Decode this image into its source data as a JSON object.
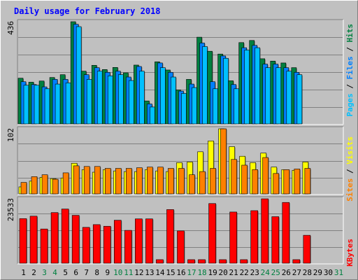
{
  "colors": {
    "background": "#c0c0c0",
    "panel": "#c0c0c0",
    "title": "#0000ff",
    "hits": "#008040",
    "files": "#0080ff",
    "files_light": "#00c0ff",
    "pages": "#00c0ff",
    "visits": "#ffff00",
    "sites": "#ff8000",
    "kbytes": "#ff0000",
    "weekend_label": "#008040",
    "weekday_label": "#000000"
  },
  "chart_data": {
    "type": "bar",
    "title": "Daily usage for February 2018",
    "days": [
      "1",
      "2",
      "3",
      "4",
      "5",
      "6",
      "7",
      "8",
      "9",
      "10",
      "11",
      "12",
      "13",
      "14",
      "15",
      "16",
      "17",
      "18",
      "19",
      "20",
      "21",
      "22",
      "23",
      "24",
      "25",
      "26",
      "27",
      "28",
      "29",
      "30",
      "31"
    ],
    "weekend_days": [
      "3",
      "4",
      "10",
      "11",
      "17",
      "18",
      "24",
      "25",
      "31"
    ],
    "panels": [
      {
        "name": "hits-files-pages",
        "max_label": "436",
        "ymax": 436,
        "series": [
          {
            "name": "Hits",
            "color": "#008040",
            "values": [
              195,
              178,
              183,
              198,
              210,
              436,
              225,
              250,
              232,
              241,
              218,
              251,
              98,
              265,
              230,
              145,
              190,
              370,
              310,
              298,
              184,
              347,
              356,
              278,
              268,
              260,
              240,
              0,
              0,
              0,
              0
            ]
          },
          {
            "name": "Files",
            "color": "#0080ff",
            "values": [
              180,
              168,
              158,
              190,
              190,
              425,
              210,
              240,
              220,
              225,
              200,
              245,
              85,
              260,
              220,
              140,
              170,
              345,
              180,
              290,
              168,
              325,
              335,
              255,
              255,
              240,
              220,
              0,
              0,
              0,
              0
            ]
          },
          {
            "name": "Pages",
            "color": "#00c0ff",
            "values": [
              165,
              165,
              150,
              170,
              175,
              415,
              190,
              225,
              205,
              210,
              185,
              225,
              72,
              240,
              200,
              130,
              155,
              330,
              150,
              280,
              150,
              315,
              325,
              240,
              240,
              225,
              210,
              0,
              0,
              0,
              0
            ]
          }
        ]
      },
      {
        "name": "visits-sites",
        "max_label": "102",
        "ymax": 102,
        "series": [
          {
            "name": "Visits",
            "color": "#ffff00",
            "values": [
              11,
              20,
              26,
              24,
              25,
              48,
              38,
              34,
              38,
              36,
              35,
              35,
              38,
              36,
              35,
              49,
              50,
              66,
              83,
              102,
              74,
              59,
              49,
              64,
              42,
              38,
              37,
              50,
              0,
              0,
              0
            ]
          },
          {
            "name": "Sites",
            "color": "#ff8000",
            "values": [
              18,
              27,
              30,
              23,
              33,
              44,
              43,
              43,
              40,
              40,
              40,
              41,
              42,
              42,
              40,
              40,
              30,
              35,
              40,
              102,
              54,
              45,
              38,
              57,
              32,
              38,
              39,
              40,
              0,
              0,
              0
            ]
          }
        ]
      },
      {
        "name": "kbytes",
        "max_label": "23533",
        "ymax": 23533,
        "series": [
          {
            "name": "KBytes",
            "color": "#ff0000",
            "values": [
              16300,
              17200,
              12500,
              18500,
              19800,
              17500,
              13100,
              14100,
              13500,
              15700,
              12000,
              16200,
              16200,
              1300,
              19600,
              11800,
              1300,
              1300,
              21800,
              1300,
              18700,
              1300,
              19200,
              23533,
              17000,
              22200,
              1300,
              10200,
              0,
              0,
              0
            ]
          }
        ]
      }
    ],
    "right_labels": {
      "top": [
        {
          "text": "Pages",
          "color": "#00c0ff"
        },
        {
          "text": " / ",
          "color": "#000000"
        },
        {
          "text": "Files",
          "color": "#0080ff"
        },
        {
          "text": " / ",
          "color": "#000000"
        },
        {
          "text": "Hits",
          "color": "#008040"
        }
      ],
      "middle": [
        {
          "text": "Sites",
          "color": "#ff8000"
        },
        {
          "text": " / ",
          "color": "#000000"
        },
        {
          "text": "Visits",
          "color": "#ffff00"
        }
      ],
      "bottom": [
        {
          "text": "KBytes",
          "color": "#ff0000"
        }
      ]
    }
  }
}
